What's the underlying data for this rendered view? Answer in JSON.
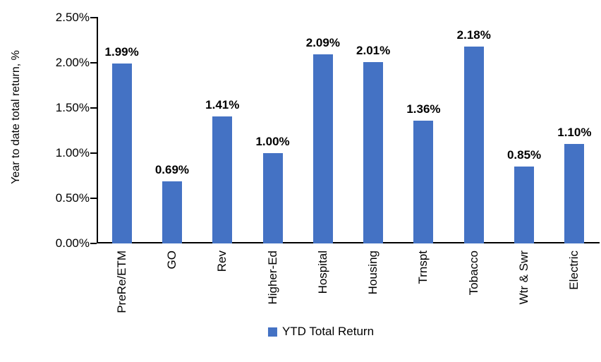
{
  "chart_data": {
    "type": "bar",
    "title": "",
    "xlabel": "",
    "ylabel": "Year to date total return, %",
    "categories": [
      "PreRe/ETM",
      "GO",
      "Rev",
      "Higher-Ed",
      "Hospital",
      "Housing",
      "Trnspt",
      "Tobacco",
      "Wtr & Swr",
      "Electric"
    ],
    "values": [
      1.99,
      0.69,
      1.41,
      1.0,
      2.09,
      2.01,
      1.36,
      2.18,
      0.85,
      1.1
    ],
    "data_labels": [
      "1.99%",
      "0.69%",
      "1.41%",
      "1.00%",
      "2.09%",
      "2.01%",
      "1.36%",
      "2.18%",
      "0.85%",
      "1.10%"
    ],
    "ylim": [
      0,
      2.5
    ],
    "yticks": [
      {
        "label": "0.00%",
        "value": 0.0
      },
      {
        "label": "0.50%",
        "value": 0.5
      },
      {
        "label": "1.00%",
        "value": 1.0
      },
      {
        "label": "1.50%",
        "value": 1.5
      },
      {
        "label": "2.00%",
        "value": 2.0
      },
      {
        "label": "2.50%",
        "value": 2.5
      }
    ],
    "grid": false,
    "legend_position": "bottom",
    "legend": [
      {
        "label": "YTD Total Return",
        "color": "#4472C4"
      }
    ],
    "bar_color": "#4472C4",
    "axis_color": "#000000",
    "text_color": "#000000"
  }
}
